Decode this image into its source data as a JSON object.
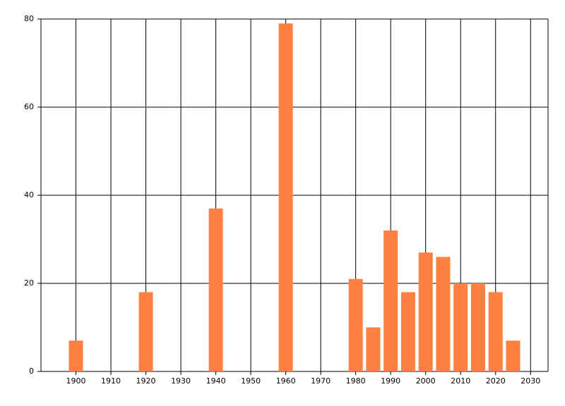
{
  "chart_data": {
    "type": "bar",
    "x": [
      1900,
      1920,
      1940,
      1960,
      1980,
      1985,
      1990,
      1995,
      2000,
      2005,
      2010,
      2015,
      2020,
      2025
    ],
    "values": [
      7,
      18,
      37,
      79,
      21,
      10,
      32,
      18,
      27,
      26,
      20,
      20,
      18,
      7
    ],
    "color": "#ff8040",
    "xlim": [
      1890,
      2035
    ],
    "xticks": [
      1900,
      1910,
      1920,
      1930,
      1940,
      1950,
      1960,
      1970,
      1980,
      1990,
      2000,
      2010,
      2020,
      2030
    ],
    "ylim": [
      0,
      80
    ],
    "yticks": [
      0,
      20,
      40,
      60,
      80
    ],
    "grid": true
  }
}
